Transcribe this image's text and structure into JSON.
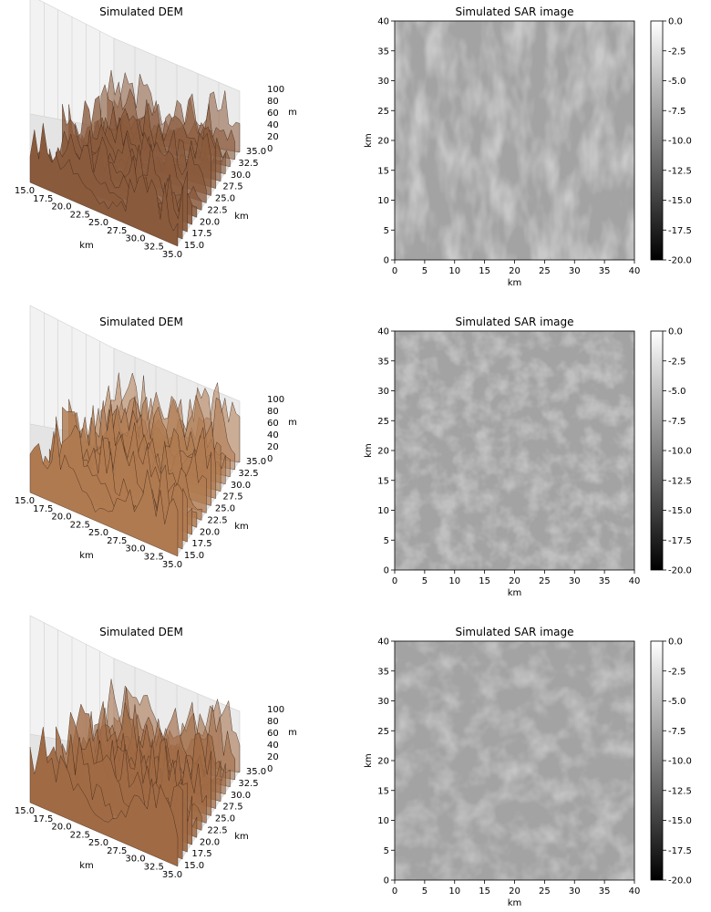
{
  "chart_data": [
    {
      "type": "surface3d",
      "title": "Simulated DEM",
      "x_ticks": [
        "15.0",
        "17.5",
        "20.0",
        "22.5",
        "25.0",
        "27.5",
        "30.0",
        "32.5",
        "35.0"
      ],
      "y_ticks": [
        "15.0",
        "17.5",
        "20.0",
        "22.5",
        "25.0",
        "27.5",
        "30.0",
        "32.5",
        "35.0"
      ],
      "z_ticks": [
        "0",
        "20",
        "40",
        "60",
        "80",
        "100"
      ],
      "xlabel": "km",
      "ylabel": "km",
      "zlabel": "m",
      "xlim": [
        15,
        35
      ],
      "ylim": [
        15,
        35
      ],
      "zlim": [
        0,
        100
      ],
      "color": "#8a5a3c"
    },
    {
      "type": "heatmap",
      "title": "Simulated SAR image",
      "x_ticks": [
        "0",
        "5",
        "10",
        "15",
        "20",
        "25",
        "30",
        "35",
        "40"
      ],
      "y_ticks": [
        "0",
        "5",
        "10",
        "15",
        "20",
        "25",
        "30",
        "35",
        "40"
      ],
      "xlabel": "km",
      "ylabel": "km",
      "xlim": [
        0,
        40
      ],
      "ylim": [
        0,
        40
      ],
      "colorbar_ticks": [
        "0.0",
        "-2.5",
        "-5.0",
        "-7.5",
        "-10.0",
        "-12.5",
        "-15.0",
        "-17.5",
        "-20.0"
      ],
      "colorbar_range": [
        -20,
        0
      ],
      "colormap": "gray"
    },
    {
      "type": "surface3d",
      "title": "Simulated DEM",
      "x_ticks": [
        "15.0",
        "17.5",
        "20.0",
        "22.5",
        "25.0",
        "27.5",
        "30.0",
        "32.5",
        "35.0"
      ],
      "y_ticks": [
        "15.0",
        "17.5",
        "20.0",
        "22.5",
        "25.0",
        "27.5",
        "30.0",
        "32.5",
        "35.0"
      ],
      "z_ticks": [
        "0",
        "20",
        "40",
        "60",
        "80",
        "100"
      ],
      "xlabel": "km",
      "ylabel": "km",
      "zlabel": "m",
      "xlim": [
        15,
        35
      ],
      "ylim": [
        15,
        35
      ],
      "zlim": [
        0,
        100
      ],
      "color": "#b07a50"
    },
    {
      "type": "heatmap",
      "title": "Simulated SAR image",
      "x_ticks": [
        "0",
        "5",
        "10",
        "15",
        "20",
        "25",
        "30",
        "35",
        "40"
      ],
      "y_ticks": [
        "0",
        "5",
        "10",
        "15",
        "20",
        "25",
        "30",
        "35",
        "40"
      ],
      "xlabel": "km",
      "ylabel": "km",
      "xlim": [
        0,
        40
      ],
      "ylim": [
        0,
        40
      ],
      "colorbar_ticks": [
        "0.0",
        "-2.5",
        "-5.0",
        "-7.5",
        "-10.0",
        "-12.5",
        "-15.0",
        "-17.5",
        "-20.0"
      ],
      "colorbar_range": [
        -20,
        0
      ],
      "colormap": "gray"
    },
    {
      "type": "surface3d",
      "title": "Simulated DEM",
      "x_ticks": [
        "15.0",
        "17.5",
        "20.0",
        "22.5",
        "25.0",
        "27.5",
        "30.0",
        "32.5",
        "35.0"
      ],
      "y_ticks": [
        "15.0",
        "17.5",
        "20.0",
        "22.5",
        "25.0",
        "27.5",
        "30.0",
        "32.5",
        "35.0"
      ],
      "z_ticks": [
        "0",
        "20",
        "40",
        "60",
        "80",
        "100"
      ],
      "xlabel": "km",
      "ylabel": "km",
      "zlabel": "m",
      "xlim": [
        15,
        35
      ],
      "ylim": [
        15,
        35
      ],
      "zlim": [
        0,
        100
      ],
      "color": "#a06a44"
    },
    {
      "type": "heatmap",
      "title": "Simulated SAR image",
      "x_ticks": [
        "0",
        "5",
        "10",
        "15",
        "20",
        "25",
        "30",
        "35",
        "40"
      ],
      "y_ticks": [
        "0",
        "5",
        "10",
        "15",
        "20",
        "25",
        "30",
        "35",
        "40"
      ],
      "xlabel": "km",
      "ylabel": "km",
      "xlim": [
        0,
        40
      ],
      "ylim": [
        0,
        40
      ],
      "colorbar_ticks": [
        "0.0",
        "-2.5",
        "-5.0",
        "-7.5",
        "-10.0",
        "-12.5",
        "-15.0",
        "-17.5",
        "-20.0"
      ],
      "colorbar_range": [
        -20,
        0
      ],
      "colormap": "gray"
    }
  ]
}
